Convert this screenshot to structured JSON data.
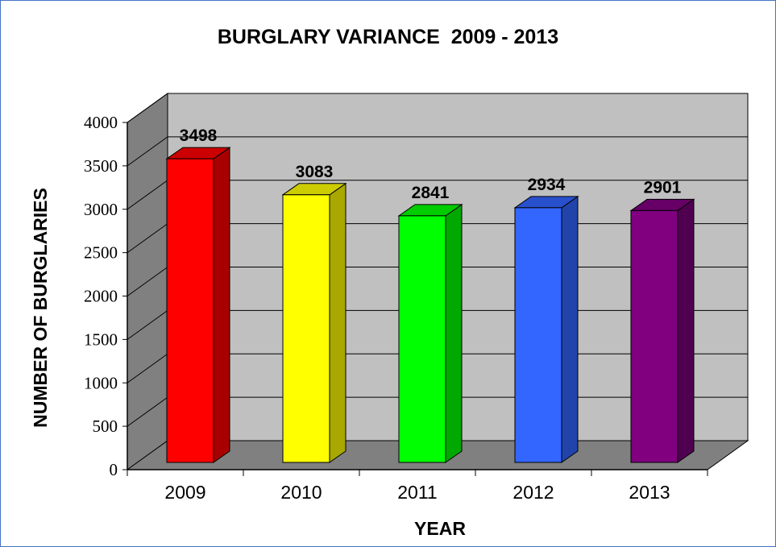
{
  "chart_data": {
    "type": "bar",
    "title": "BURGLARY VARIANCE  2009 - 2013",
    "xlabel": "YEAR",
    "ylabel": "NUMBER OF BURGLARIES",
    "categories": [
      "2009",
      "2010",
      "2011",
      "2012",
      "2013"
    ],
    "values": [
      3498,
      3083,
      2841,
      2934,
      2901
    ],
    "data_labels": [
      "3498",
      "3083",
      "2841",
      "2934",
      "2901"
    ],
    "yticks": [
      "0",
      "500",
      "1000",
      "1500",
      "2000",
      "2500",
      "3000",
      "3500",
      "4000"
    ],
    "ylim": [
      0,
      4000
    ],
    "grid": true,
    "three_d": true,
    "colors": [
      "#ff0000",
      "#ffff00",
      "#00ff00",
      "#3366ff",
      "#800080"
    ],
    "side_colors": [
      "#a80000",
      "#a8a800",
      "#00a800",
      "#2244aa",
      "#500050"
    ],
    "top_colors": [
      "#cc0000",
      "#cccc00",
      "#00cc00",
      "#2850cc",
      "#660066"
    ],
    "wall_color": "#c0c0c0",
    "floor_color": "#808080",
    "side_wall_color": "#808080",
    "frame_color": "#4472c4"
  }
}
